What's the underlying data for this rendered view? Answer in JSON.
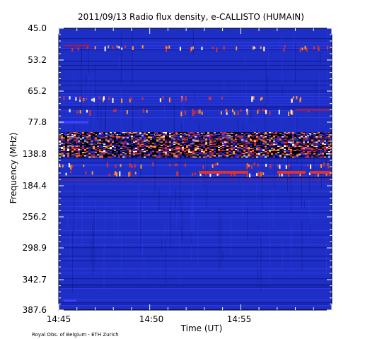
{
  "chart_data": {
    "type": "heatmap",
    "title": "2011/09/13  Radio flux density, e-CALLISTO (HUMAIN)",
    "xlabel": "Time (UT)",
    "ylabel": "Frequency (MHz)",
    "x_ticks": [
      "14:45",
      "14:50",
      "14:55"
    ],
    "y_ticks": [
      "45.0",
      "53.2",
      "65.2",
      "77.8",
      "138.8",
      "184.4",
      "256.2",
      "298.9",
      "342.7",
      "387.6"
    ],
    "x_range": [
      "14:45",
      "15:00"
    ],
    "y_range": [
      45.0,
      387.6
    ],
    "y_reversed": true,
    "colormap": [
      "#000000",
      "#0c0f7a",
      "#1d2fc4",
      "#3a40ff",
      "#8a1f6a",
      "#e0302a",
      "#ff9a20",
      "#ffffff"
    ],
    "credit": "Royal Obs. of Belgium - ETH Zurich"
  }
}
